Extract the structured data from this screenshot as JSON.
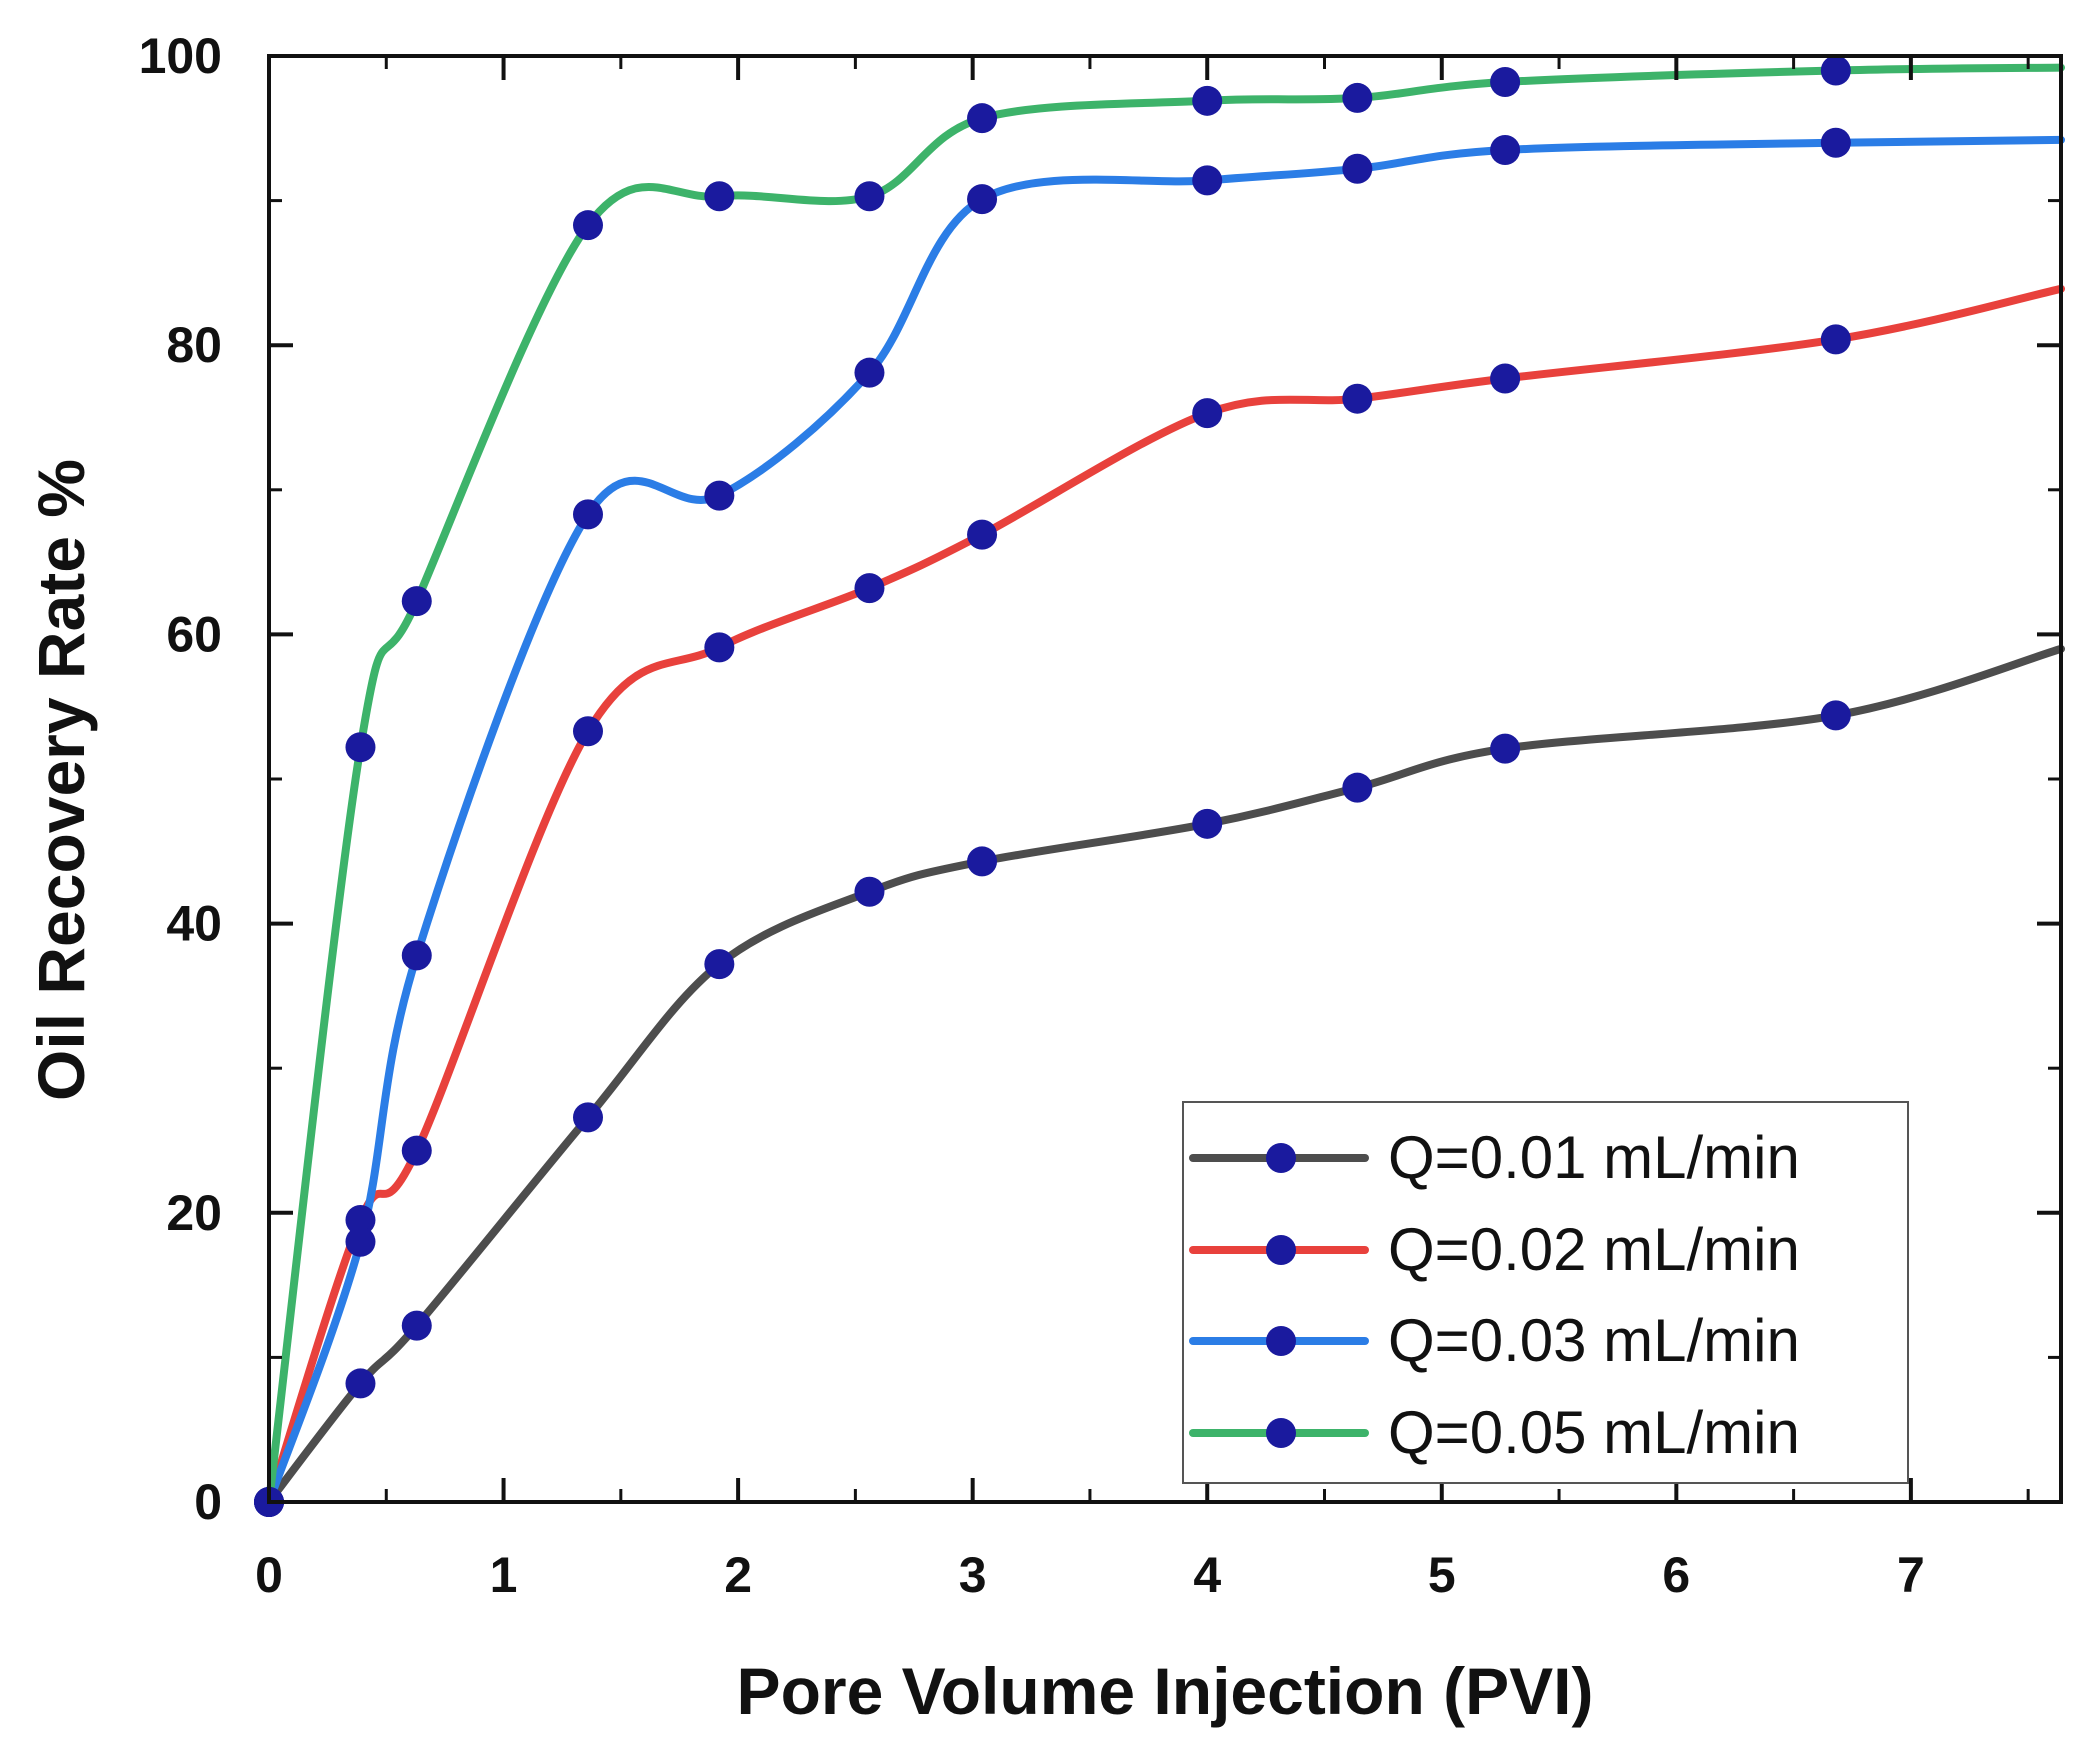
{
  "chart_data": {
    "type": "line",
    "title": "",
    "xlabel": "Pore Volume Injection (PVI)",
    "ylabel": "Oil Recovery Rate %",
    "xlim": [
      0,
      7.64
    ],
    "ylim": [
      0,
      100
    ],
    "xticks": [
      0,
      1,
      2,
      3,
      4,
      5,
      6,
      7
    ],
    "yticks": [
      0,
      20,
      40,
      60,
      80,
      100
    ],
    "xtick_labels": [
      "0",
      "1",
      "2",
      "3",
      "4",
      "5",
      "6",
      "7"
    ],
    "ytick_labels": [
      "0",
      "20",
      "40",
      "60",
      "80",
      "100"
    ],
    "grid": false,
    "legend_position": "bottom-right",
    "marker_color": "#1a1a9e",
    "series": [
      {
        "name": "Q=0.01 mL/min",
        "color": "#4d4d4d",
        "x": [
          0,
          0.39,
          0.63,
          1.36,
          1.92,
          2.56,
          3.04,
          4.0,
          4.64,
          5.27,
          6.68,
          7.64
        ],
        "y": [
          0,
          8.2,
          12.2,
          26.6,
          37.2,
          42.2,
          44.3,
          46.9,
          49.4,
          52.1,
          54.4,
          59.0
        ],
        "markers": [
          true,
          true,
          true,
          true,
          true,
          true,
          true,
          true,
          true,
          true,
          true,
          false
        ]
      },
      {
        "name": "Q=0.02 mL/min",
        "color": "#e8413c",
        "x": [
          0,
          0.39,
          0.63,
          1.36,
          1.92,
          2.56,
          3.04,
          4.0,
          4.64,
          5.27,
          6.68,
          7.64
        ],
        "y": [
          0,
          19.5,
          24.3,
          53.3,
          59.1,
          63.2,
          66.9,
          75.3,
          76.3,
          77.7,
          80.4,
          83.9
        ],
        "markers": [
          true,
          true,
          true,
          true,
          true,
          true,
          true,
          true,
          true,
          true,
          true,
          false
        ]
      },
      {
        "name": "Q=0.03 mL/min",
        "color": "#2b7de6",
        "x": [
          0,
          0.39,
          0.63,
          1.36,
          1.92,
          2.56,
          3.04,
          4.0,
          4.64,
          5.27,
          6.68,
          7.64
        ],
        "y": [
          0,
          18.0,
          37.8,
          68.3,
          69.6,
          78.1,
          90.1,
          91.4,
          92.2,
          93.5,
          94.0,
          94.2
        ],
        "markers": [
          true,
          true,
          true,
          true,
          true,
          true,
          true,
          true,
          true,
          true,
          true,
          false
        ]
      },
      {
        "name": "Q=0.05 mL/min",
        "color": "#3db36a",
        "x": [
          0,
          0.39,
          0.63,
          1.36,
          1.92,
          2.56,
          3.04,
          4.0,
          4.64,
          5.27,
          6.68,
          7.64
        ],
        "y": [
          0,
          52.2,
          62.3,
          88.3,
          90.3,
          90.3,
          95.7,
          96.9,
          97.1,
          98.2,
          99.0,
          99.2
        ],
        "markers": [
          true,
          true,
          true,
          true,
          true,
          true,
          true,
          true,
          true,
          true,
          true,
          false
        ]
      }
    ]
  }
}
